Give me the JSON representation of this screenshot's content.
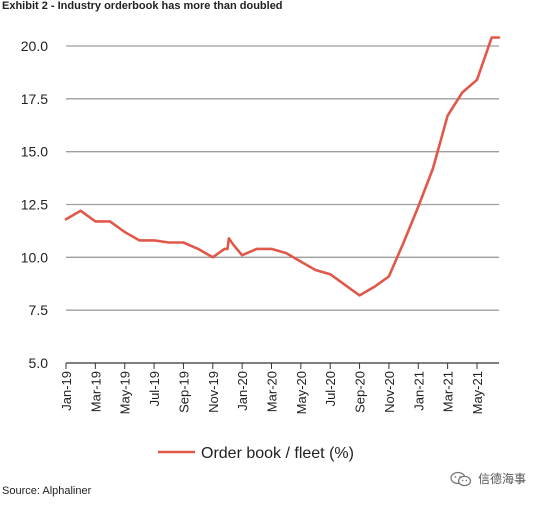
{
  "header": {
    "title": "Exhibit 2 - Industry orderbook has more than doubled"
  },
  "footer": {
    "source": "Source: Alphaliner"
  },
  "watermark": {
    "text": "信德海事",
    "icon": "wechat-icon"
  },
  "chart_data": {
    "type": "line",
    "title": "Exhibit 2 - Industry orderbook has more than doubled",
    "xlabel": "",
    "ylabel": "",
    "ylim": [
      5.0,
      20.0
    ],
    "yticks": [
      "20.0",
      "17.5",
      "15.0",
      "12.5",
      "10.0",
      "7.5",
      "5.0"
    ],
    "yticks_values": [
      20.0,
      17.5,
      15.0,
      12.5,
      10.0,
      7.5,
      5.0
    ],
    "xticks": [
      "Jan-19",
      "Mar-19",
      "May-19",
      "Jul-19",
      "Sep-19",
      "Nov-19",
      "Jan-20",
      "Mar-20",
      "May-20",
      "Jul-20",
      "Sep-20",
      "Nov-20",
      "Jan-21",
      "Mar-21",
      "May-21"
    ],
    "xticks_months": [
      0,
      2,
      4,
      6,
      8,
      10,
      12,
      14,
      16,
      18,
      20,
      22,
      24,
      26,
      28
    ],
    "grid": "horizontal",
    "legend": "bottom",
    "colors": {
      "line": "#e0584a",
      "grid": "#9e9e9e",
      "axis": "#333333"
    },
    "series": [
      {
        "name": "Order book / fleet (%)",
        "x": [
          0,
          1,
          2,
          3,
          4,
          5,
          6,
          7,
          8,
          9,
          10,
          10.8,
          11,
          11.1,
          11.4,
          12,
          13,
          14,
          15,
          16,
          17,
          18,
          19,
          20,
          21,
          22,
          23,
          24,
          25,
          26,
          27,
          28,
          29,
          29.5
        ],
        "y": [
          11.8,
          12.2,
          11.7,
          11.7,
          11.2,
          10.8,
          10.8,
          10.7,
          10.7,
          10.4,
          10.0,
          10.4,
          10.4,
          10.9,
          10.6,
          10.1,
          10.4,
          10.4,
          10.2,
          9.8,
          9.4,
          9.2,
          8.7,
          8.2,
          8.6,
          9.1,
          10.7,
          12.4,
          14.2,
          16.7,
          17.8,
          18.4,
          20.4,
          20.4
        ]
      }
    ]
  }
}
